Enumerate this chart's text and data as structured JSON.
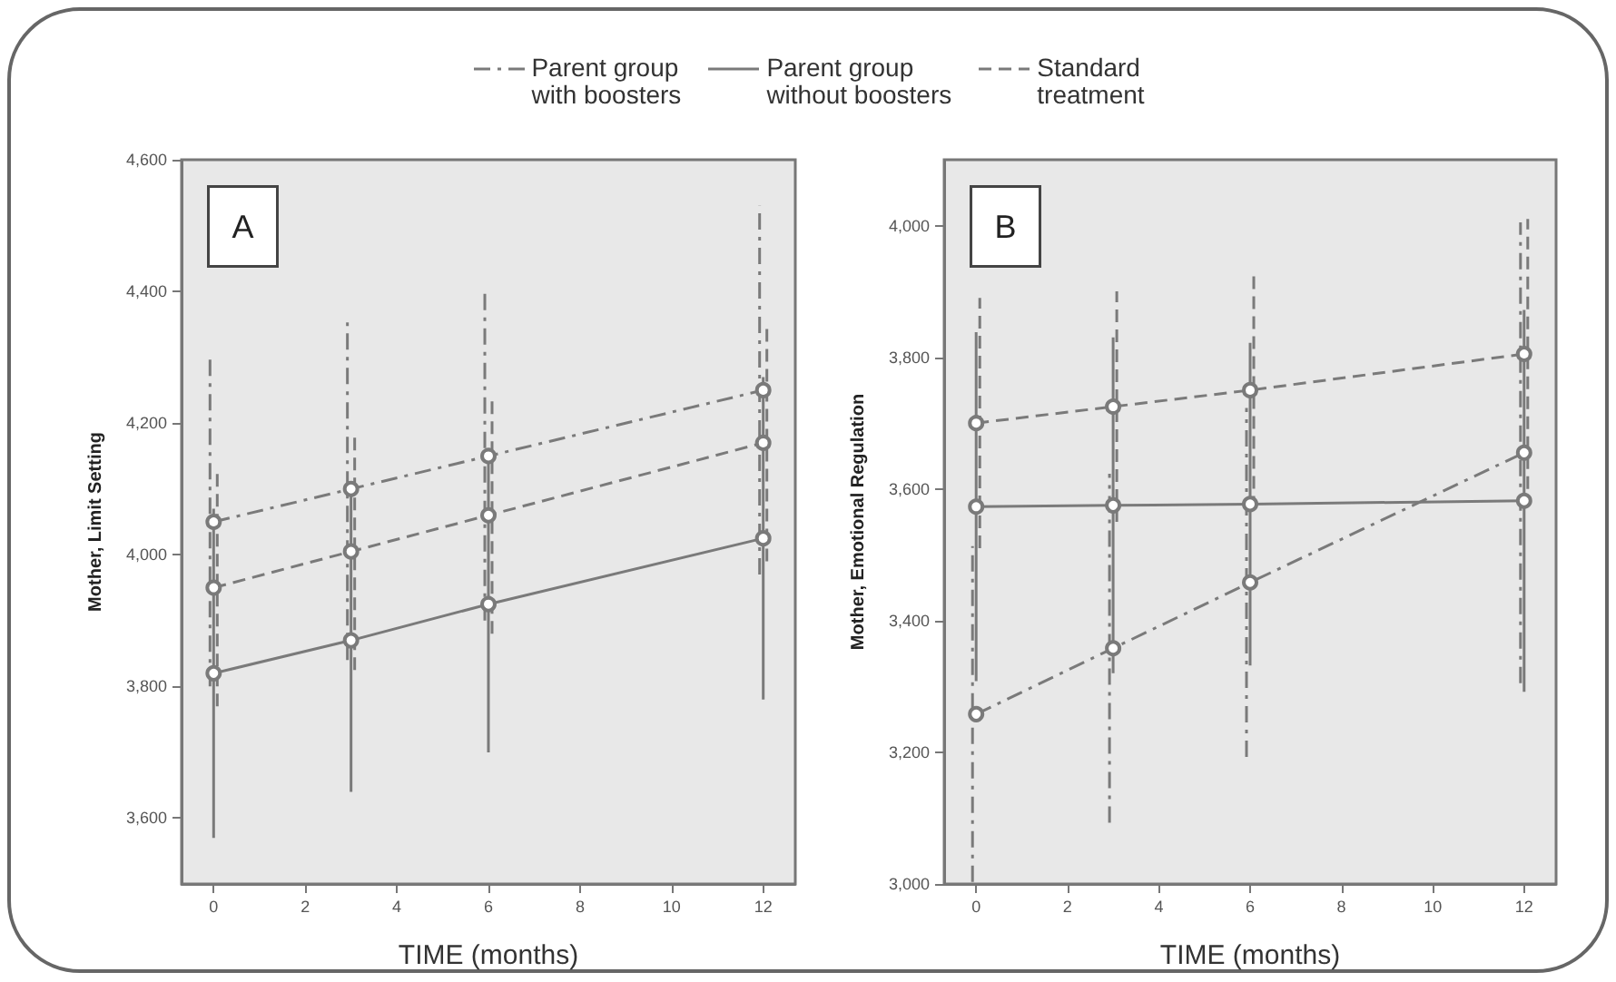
{
  "chart_data": [
    {
      "type": "line",
      "xlabel": "TIME (months)",
      "ylabel": "Mother, Limit Setting",
      "annotations": [
        "A"
      ],
      "x": [
        0,
        3,
        6,
        12
      ],
      "xlim": [
        -0.7,
        12.7
      ],
      "xticks": [
        0,
        2,
        4,
        6,
        8,
        10,
        12
      ],
      "ylim": [
        3500,
        4600
      ],
      "yticks": [
        {
          "value": 3600,
          "label": "3,600"
        },
        {
          "value": 3800,
          "label": "3,800"
        },
        {
          "value": 4000,
          "label": "4,000"
        },
        {
          "value": 4200,
          "label": "4,200"
        },
        {
          "value": 4400,
          "label": "4,400"
        },
        {
          "value": 4600,
          "label": "4,600"
        }
      ],
      "legend": "top",
      "marker": "circle",
      "grid": false,
      "series": [
        {
          "name": "Parent group\nwith boosters",
          "color": "#7a7a7a",
          "line_style": "dashdot",
          "values": [
            4050,
            4100,
            4150,
            4250
          ],
          "errors": [
            250,
            260,
            250,
            280
          ]
        },
        {
          "name": "Parent group\nwithout boosters",
          "color": "#7a7a7a",
          "line_style": "solid",
          "values": [
            3820,
            3870,
            3925,
            4025
          ],
          "errors": [
            250,
            230,
            225,
            245
          ]
        },
        {
          "name": "Standard\ntreatment",
          "color": "#7a7a7a",
          "line_style": "dashed",
          "values": [
            3950,
            4005,
            4060,
            4170
          ],
          "errors": [
            180,
            180,
            180,
            180
          ]
        }
      ]
    },
    {
      "type": "line",
      "xlabel": "TIME (months)",
      "ylabel": "Mother, Emotional Regulation",
      "annotations": [
        "B"
      ],
      "x": [
        0,
        3,
        6,
        12
      ],
      "xlim": [
        -0.7,
        12.7
      ],
      "xticks": [
        0,
        2,
        4,
        6,
        8,
        10,
        12
      ],
      "ylim": [
        3000,
        4100
      ],
      "yticks": [
        {
          "value": 3000,
          "label": "3,000"
        },
        {
          "value": 3200,
          "label": "3,200"
        },
        {
          "value": 3400,
          "label": "3,400"
        },
        {
          "value": 3600,
          "label": "3,600"
        },
        {
          "value": 3800,
          "label": "3,800"
        },
        {
          "value": 4000,
          "label": "4,000"
        }
      ],
      "marker": "circle",
      "grid": false,
      "series": [
        {
          "name": "Parent group\nwith boosters",
          "color": "#7a7a7a",
          "line_style": "dashdot",
          "values": [
            3258,
            3358,
            3458,
            3655
          ],
          "errors": [
            255,
            265,
            265,
            350
          ]
        },
        {
          "name": "Parent group\nwithout boosters",
          "color": "#7a7a7a",
          "line_style": "solid",
          "values": [
            3573,
            3575,
            3577,
            3582
          ],
          "errors": [
            265,
            255,
            245,
            290
          ]
        },
        {
          "name": "Standard\ntreatment",
          "color": "#7a7a7a",
          "line_style": "dashed",
          "values": [
            3700,
            3725,
            3750,
            3805
          ],
          "errors": [
            190,
            175,
            180,
            205
          ]
        }
      ]
    }
  ]
}
